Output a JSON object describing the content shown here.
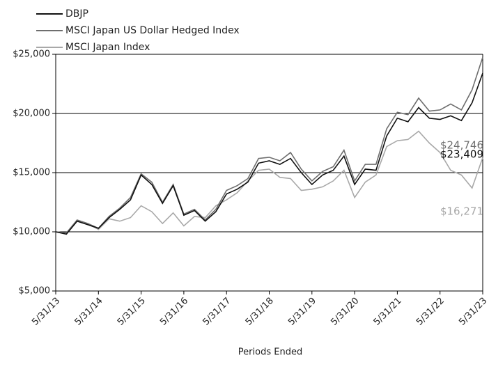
{
  "chart_data": {
    "type": "line",
    "x_label": "Periods Ended",
    "categories": [
      "5/31/13",
      null,
      null,
      null,
      "5/31/14",
      null,
      null,
      null,
      "5/31/15",
      null,
      null,
      null,
      "5/31/16",
      null,
      null,
      null,
      "5/31/17",
      null,
      null,
      null,
      "5/31/18",
      null,
      null,
      null,
      "5/31/19",
      null,
      null,
      null,
      "5/31/20",
      null,
      null,
      null,
      "5/31/21",
      null,
      null,
      null,
      "5/31/22",
      null,
      null,
      null,
      "5/31/23"
    ],
    "series": [
      {
        "name": "DBJP",
        "color": "#111111",
        "end_label": "$23,409",
        "values": [
          10000,
          9800,
          10900,
          10600,
          10300,
          11200,
          11900,
          12700,
          14800,
          14000,
          12400,
          13900,
          11400,
          11800,
          10900,
          11700,
          13200,
          13600,
          14200,
          15800,
          16000,
          15700,
          16200,
          15000,
          14000,
          14800,
          15200,
          16400,
          14000,
          15300,
          15200,
          18100,
          19600,
          19300,
          20500,
          19600,
          19500,
          19800,
          19400,
          20900,
          23409
        ]
      },
      {
        "name": "MSCI Japan US Dollar Hedged Index",
        "color": "#6e6e6e",
        "end_label": "$24,746",
        "values": [
          10000,
          9900,
          11000,
          10700,
          10300,
          11300,
          12000,
          12900,
          14900,
          14200,
          12500,
          14000,
          11500,
          11900,
          11000,
          11900,
          13500,
          13900,
          14500,
          16200,
          16300,
          16000,
          16700,
          15300,
          14300,
          15100,
          15500,
          16900,
          14300,
          15700,
          15700,
          18700,
          20100,
          19900,
          21300,
          20200,
          20300,
          20800,
          20300,
          22000,
          24746
        ]
      },
      {
        "name": "MSCI Japan Index",
        "color": "#a8a8a8",
        "end_label": "$16,271",
        "values": [
          10000,
          9900,
          11000,
          10700,
          10200,
          11100,
          10900,
          11200,
          12200,
          11700,
          10700,
          11600,
          10500,
          11300,
          11200,
          12200,
          12700,
          13300,
          14300,
          15200,
          15300,
          14600,
          14500,
          13500,
          13600,
          13800,
          14300,
          15200,
          12900,
          14200,
          14800,
          17200,
          17700,
          17800,
          18500,
          17500,
          16700,
          15200,
          14800,
          13700,
          16271
        ]
      }
    ],
    "ylim": [
      5000,
      25000
    ],
    "yticks": [
      {
        "value": 5000,
        "label": "$5,000"
      },
      {
        "value": 10000,
        "label": "$10,000"
      },
      {
        "value": 15000,
        "label": "$15,000"
      },
      {
        "value": 20000,
        "label": "$20,000"
      },
      {
        "value": 25000,
        "label": "$25,000"
      }
    ],
    "grid": true,
    "legend": "top-left"
  }
}
